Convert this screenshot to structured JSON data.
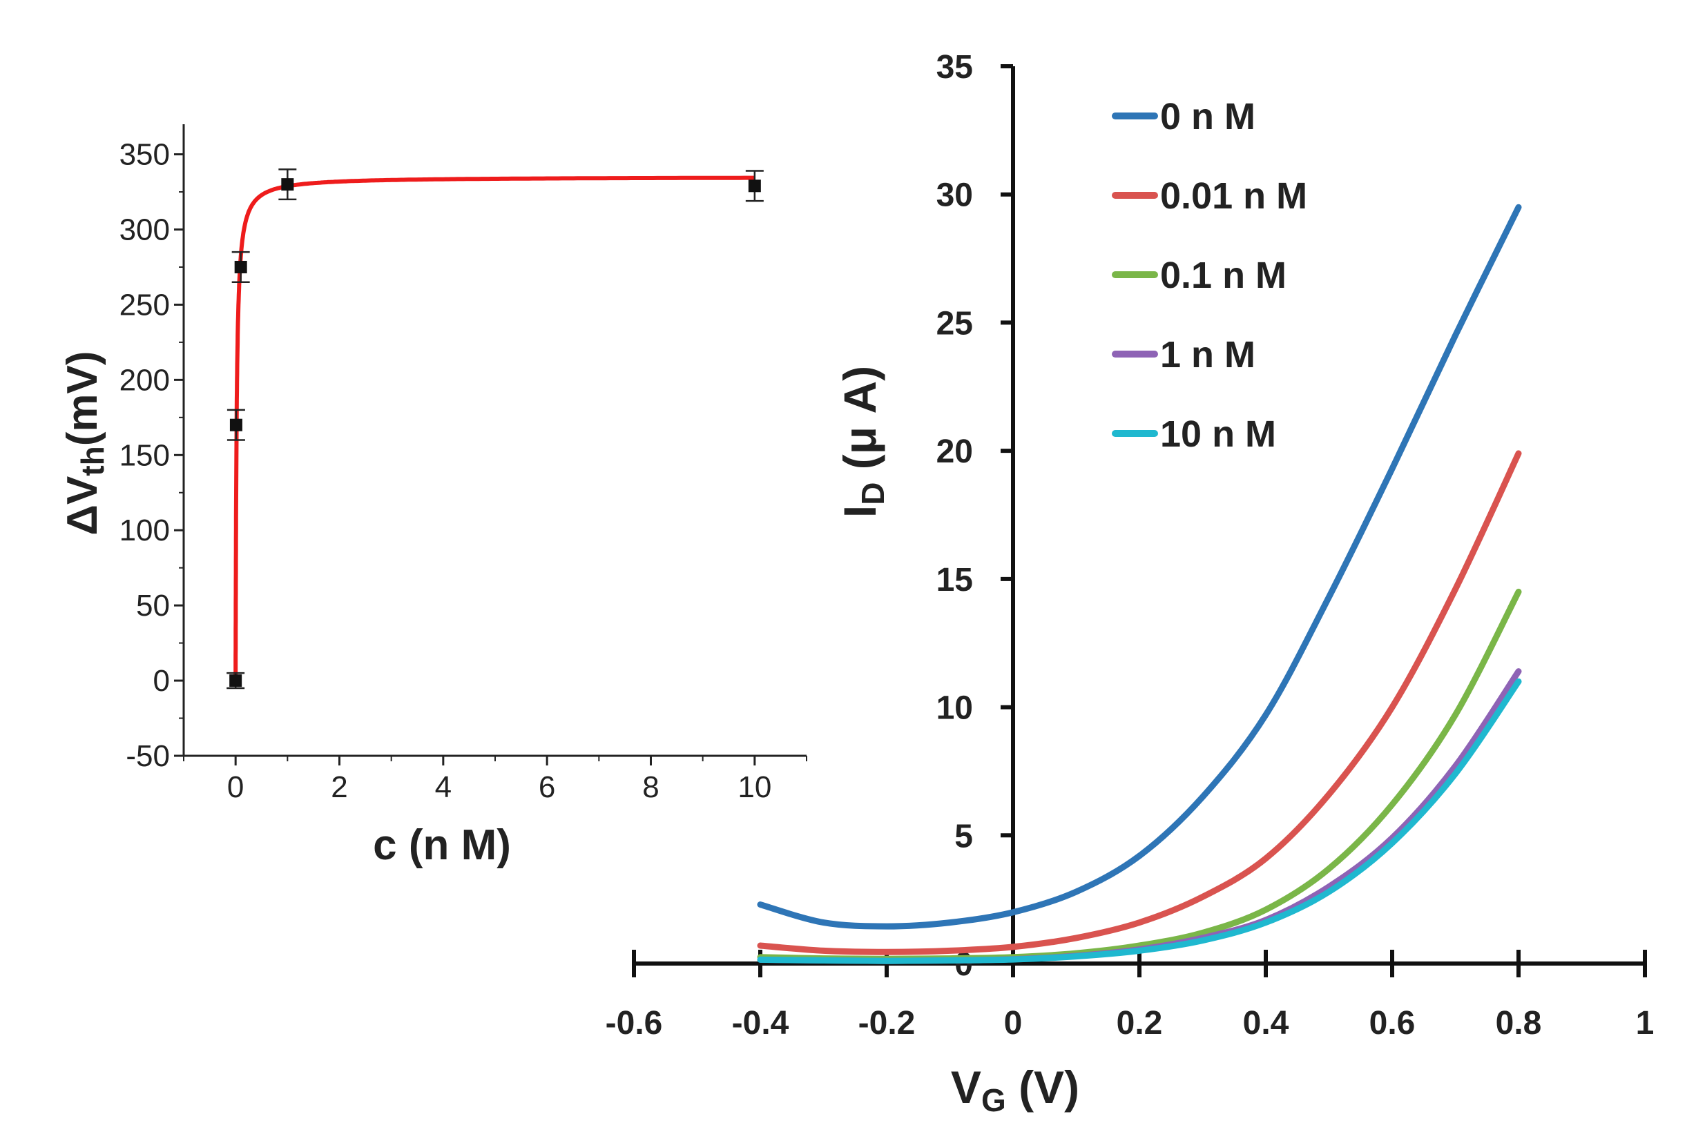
{
  "chart_data": [
    {
      "type": "scatter",
      "xlabel": "c (n M)",
      "ylabel_main": "ΔV",
      "ylabel_sub": "th",
      "ylabel_unit": "(mV)",
      "xlim": [
        -1,
        11
      ],
      "ylim": [
        -50,
        370
      ],
      "xticks": [
        0,
        2,
        4,
        6,
        8,
        10
      ],
      "yticks": [
        -50,
        0,
        50,
        100,
        150,
        200,
        250,
        300,
        350
      ],
      "points": [
        {
          "x": 0,
          "y": 0,
          "err": 5
        },
        {
          "x": 0.01,
          "y": 170,
          "err": 10
        },
        {
          "x": 0.1,
          "y": 275,
          "err": 10
        },
        {
          "x": 1,
          "y": 330,
          "err": 10
        },
        {
          "x": 10,
          "y": 329,
          "err": 10
        }
      ],
      "fit": {
        "color": "#ee1c1c",
        "vmax": 335,
        "k": 0.0188
      }
    },
    {
      "type": "line",
      "xlabel_main": "V",
      "xlabel_sub": "G",
      "xlabel_unit": " (V)",
      "ylabel_main": "I",
      "ylabel_sub": "D",
      "ylabel_unit": " (μ A)",
      "xlim": [
        -0.6,
        1.0
      ],
      "ylim": [
        0,
        35
      ],
      "xticks": [
        -0.6,
        -0.4,
        -0.2,
        0,
        0.2,
        0.4,
        0.6,
        0.8,
        1
      ],
      "xtick_labels": [
        "-0.6",
        "-0.4",
        "-0.2",
        "0",
        "0.2",
        "0.4",
        "0.6",
        "0.8",
        "1"
      ],
      "yticks": [
        0,
        5,
        10,
        15,
        20,
        25,
        30,
        35
      ],
      "series": [
        {
          "name": "0 n M",
          "color": "#2e75b6",
          "x": [
            -0.4,
            -0.3,
            -0.2,
            -0.1,
            0,
            0.1,
            0.2,
            0.3,
            0.4,
            0.5,
            0.6,
            0.7,
            0.8
          ],
          "y": [
            2.3,
            1.6,
            1.45,
            1.6,
            2.0,
            2.8,
            4.2,
            6.5,
            9.7,
            14.3,
            19.3,
            24.5,
            29.5
          ]
        },
        {
          "name": "0.01 n M",
          "color": "#d9534f",
          "x": [
            -0.4,
            -0.3,
            -0.2,
            -0.1,
            0,
            0.1,
            0.2,
            0.3,
            0.4,
            0.5,
            0.6,
            0.7,
            0.8
          ],
          "y": [
            0.7,
            0.5,
            0.45,
            0.5,
            0.65,
            1.0,
            1.6,
            2.6,
            4.1,
            6.6,
            10.0,
            14.6,
            19.9
          ]
        },
        {
          "name": "0.1 n M",
          "color": "#7ab648",
          "x": [
            -0.4,
            -0.3,
            -0.2,
            -0.1,
            0,
            0.1,
            0.2,
            0.3,
            0.4,
            0.5,
            0.6,
            0.7,
            0.8
          ],
          "y": [
            0.25,
            0.2,
            0.18,
            0.2,
            0.25,
            0.4,
            0.7,
            1.2,
            2.1,
            3.7,
            6.2,
            9.7,
            14.5
          ]
        },
        {
          "name": "1 n M",
          "color": "#8e63b5",
          "x": [
            -0.4,
            -0.3,
            -0.2,
            -0.1,
            0,
            0.1,
            0.2,
            0.3,
            0.4,
            0.5,
            0.6,
            0.7,
            0.8
          ],
          "y": [
            0.15,
            0.12,
            0.1,
            0.12,
            0.17,
            0.3,
            0.55,
            1.0,
            1.7,
            3.0,
            4.9,
            7.7,
            11.4
          ]
        },
        {
          "name": "10 n M",
          "color": "#1fb8cf",
          "x": [
            -0.4,
            -0.3,
            -0.2,
            -0.1,
            0,
            0.1,
            0.2,
            0.3,
            0.4,
            0.5,
            0.6,
            0.7,
            0.8
          ],
          "y": [
            0.15,
            0.12,
            0.1,
            0.12,
            0.16,
            0.28,
            0.5,
            0.9,
            1.6,
            2.8,
            4.7,
            7.4,
            11.0
          ]
        }
      ],
      "legend_position": "top-center"
    }
  ]
}
